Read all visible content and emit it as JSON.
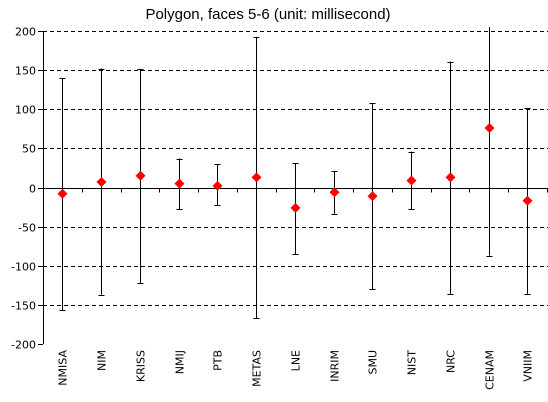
{
  "chart_data": {
    "type": "scatter",
    "title": "Polygon, faces 5-6 (unit: millisecond)",
    "xlabel": "",
    "ylabel": "",
    "ylim": [
      -200,
      200
    ],
    "yticks": [
      200,
      150,
      100,
      50,
      0,
      -50,
      -100,
      -150,
      -200
    ],
    "grid": "horizontal-dashed",
    "legend": "none",
    "marker_color": "#ff0000",
    "error_bar_color": "#000000",
    "categories": [
      "NMISA",
      "NIM",
      "KRISS",
      "NMIJ",
      "PTB",
      "METAS",
      "LNE",
      "INRIM",
      "SMU",
      "NIST",
      "NRC",
      "CENAM",
      "VNIIM"
    ],
    "values": [
      -8,
      7,
      15,
      5,
      2,
      13,
      -26,
      -6,
      -11,
      9,
      13,
      76,
      -17
    ],
    "error_upper": [
      140,
      152,
      151,
      37,
      30,
      192,
      31,
      21,
      108,
      46,
      161,
      210,
      101
    ],
    "error_lower": [
      -157,
      -137,
      -122,
      -28,
      -23,
      -167,
      -85,
      -34,
      -130,
      -28,
      -136,
      -87,
      -136
    ]
  }
}
